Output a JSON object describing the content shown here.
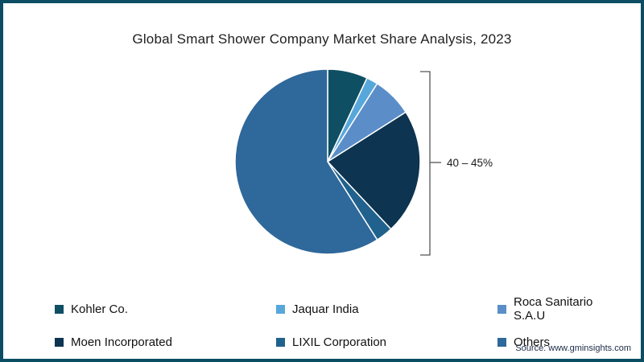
{
  "title": "Global Smart Shower Company Market Share Analysis, 2023",
  "source": "Source: www.gminsights.com",
  "colors": {
    "frame_border": "#0c4d63",
    "background": "#ffffff",
    "bracket": "#555555"
  },
  "chart_data": {
    "type": "pie",
    "title": "Global Smart Shower Company Market Share Analysis, 2023",
    "start_angle_deg": 0,
    "direction": "clockwise",
    "legend_position": "bottom",
    "slices": [
      {
        "label": "Kohler Co.",
        "value": 7,
        "color": "#0e4f63"
      },
      {
        "label": "Jaquar India",
        "value": 2,
        "color": "#58a7da"
      },
      {
        "label": "Roca Sanitario S.A.U",
        "value": 7,
        "color": "#5b8ec8"
      },
      {
        "label": "Moen Incorporated",
        "value": 22,
        "color": "#0d3450"
      },
      {
        "label": "LIXIL Corporation",
        "value": 3,
        "color": "#20618d"
      },
      {
        "label": "Others",
        "value": 59,
        "color": "#2f689a"
      }
    ],
    "annotation": {
      "text": "40 – 45%"
    }
  }
}
